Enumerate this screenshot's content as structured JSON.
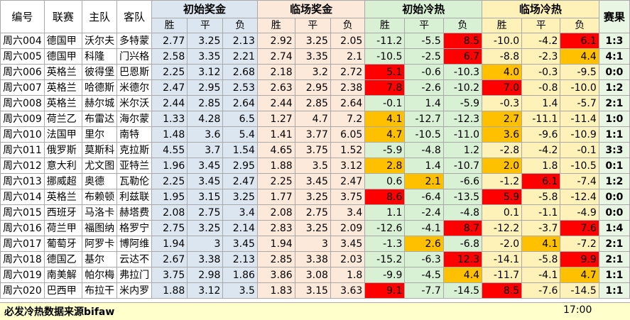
{
  "headers": {
    "id": "编号",
    "league": "联赛",
    "home": "主队",
    "away": "客队",
    "init_odds": "初始奖金",
    "live_odds": "临场奖金",
    "init_heat": "初始冷热",
    "live_heat": "临场冷热",
    "result": "赛果",
    "win": "胜",
    "draw": "平",
    "lose": "负"
  },
  "rows": [
    {
      "id": "周六004",
      "league": "德国甲",
      "home": "沃尔夫",
      "away": "多特蒙",
      "i": [
        "2.77",
        "3.25",
        "2.13"
      ],
      "l": [
        "2.92",
        "3.25",
        "2.05"
      ],
      "ih": [
        "-11.2",
        "-5.5",
        "8.5"
      ],
      "lh": [
        "-10.0",
        "-4.2",
        "6.1"
      ],
      "res": "1:3"
    },
    {
      "id": "周六005",
      "league": "德国甲",
      "home": "科隆",
      "away": "门兴格",
      "i": [
        "2.58",
        "3.35",
        "2.21"
      ],
      "l": [
        "2.74",
        "3.35",
        "2.1"
      ],
      "ih": [
        "-10.5",
        "-2.5",
        "6.7"
      ],
      "lh": [
        "-8.8",
        "-2.3",
        "4.4"
      ],
      "res": "4:1"
    },
    {
      "id": "周六006",
      "league": "英格兰",
      "home": "彼得堡",
      "away": "巴恩斯",
      "i": [
        "2.25",
        "3.12",
        "2.68"
      ],
      "l": [
        "2.18",
        "3.2",
        "2.72"
      ],
      "ih": [
        "5.1",
        "-0.6",
        "-10.3"
      ],
      "lh": [
        "4.0",
        "-0.3",
        "-9.5"
      ],
      "res": "0:0"
    },
    {
      "id": "周六007",
      "league": "英格兰",
      "home": "哈德斯",
      "away": "米德尔",
      "i": [
        "2.47",
        "2.95",
        "2.53"
      ],
      "l": [
        "2.63",
        "2.95",
        "2.38"
      ],
      "ih": [
        "7.8",
        "-2.6",
        "-10.2"
      ],
      "lh": [
        "7.0",
        "-0.8",
        "-10.0"
      ],
      "res": "1:2"
    },
    {
      "id": "周六008",
      "league": "英格兰",
      "home": "赫尔城",
      "away": "米尔沃",
      "i": [
        "2.44",
        "2.85",
        "2.64"
      ],
      "l": [
        "2.44",
        "2.85",
        "2.64"
      ],
      "ih": [
        "-0.1",
        "1.4",
        "-5.9"
      ],
      "lh": [
        "-0.3",
        "1.4",
        "-5.7"
      ],
      "res": "2:1"
    },
    {
      "id": "周六009",
      "league": "荷兰乙",
      "home": "布雷达",
      "away": "海尔蒙",
      "i": [
        "1.33",
        "4.28",
        "6.5"
      ],
      "l": [
        "1.27",
        "4.7",
        "7.2"
      ],
      "ih": [
        "4.1",
        "-12.7",
        "-12.3"
      ],
      "lh": [
        "2.7",
        "-11.1",
        "-11.4"
      ],
      "res": "1:0"
    },
    {
      "id": "周六010",
      "league": "法国甲",
      "home": "里尔",
      "away": "南特",
      "i": [
        "1.48",
        "3.6",
        "5.4"
      ],
      "l": [
        "1.41",
        "3.77",
        "6.05"
      ],
      "ih": [
        "4.7",
        "-10.5",
        "-11.0"
      ],
      "lh": [
        "3.6",
        "-9.6",
        "-10.9"
      ],
      "res": "1:1"
    },
    {
      "id": "周六011",
      "league": "俄罗斯",
      "home": "莫斯科",
      "away": "克拉斯",
      "i": [
        "4.55",
        "3.7",
        "1.54"
      ],
      "l": [
        "4.65",
        "3.75",
        "1.52"
      ],
      "ih": [
        "-5.9",
        "-4.8",
        "1.2"
      ],
      "lh": [
        "-2.8",
        "-4.2",
        "-0.1"
      ],
      "res": "3:3"
    },
    {
      "id": "周六012",
      "league": "意大利",
      "home": "尤文图",
      "away": "亚特兰",
      "i": [
        "1.96",
        "3.45",
        "2.95"
      ],
      "l": [
        "1.88",
        "3.5",
        "3.12"
      ],
      "ih": [
        "2.8",
        "1.4",
        "-10.7"
      ],
      "lh": [
        "2.0",
        "1.8",
        "-10.5"
      ],
      "res": "0:1"
    },
    {
      "id": "周六013",
      "league": "挪威超",
      "home": "奥德",
      "away": "瓦勒伦",
      "i": [
        "2.25",
        "3.45",
        "2.47"
      ],
      "l": [
        "2.25",
        "3.45",
        "2.47"
      ],
      "ih": [
        "0.6",
        "2.1",
        "-6.6"
      ],
      "lh": [
        "-1.2",
        "6.1",
        "-7.4"
      ],
      "res": "1:2"
    },
    {
      "id": "周六014",
      "league": "英格兰",
      "home": "布赖顿",
      "away": "利兹联",
      "i": [
        "1.95",
        "3.15",
        "3.25"
      ],
      "l": [
        "1.77",
        "3.25",
        "3.75"
      ],
      "ih": [
        "8.6",
        "-6.4",
        "-13.5"
      ],
      "lh": [
        "5.9",
        "-5.8",
        "-12.4"
      ],
      "res": "0:0"
    },
    {
      "id": "周六015",
      "league": "西班牙",
      "home": "马洛卡",
      "away": "赫塔费",
      "i": [
        "2.08",
        "2.75",
        "3.4"
      ],
      "l": [
        "2.08",
        "2.75",
        "3.4"
      ],
      "ih": [
        "1.1",
        "-2.4",
        "-4.8"
      ],
      "lh": [
        "0.1",
        "-1.1",
        "-4.9"
      ],
      "res": "0:0"
    },
    {
      "id": "周六016",
      "league": "荷兰甲",
      "home": "福图纳",
      "away": "格罗宁",
      "i": [
        "2.75",
        "3.25",
        "2.14"
      ],
      "l": [
        "2.83",
        "3.25",
        "2.09"
      ],
      "ih": [
        "-12.6",
        "-4.1",
        "8.7"
      ],
      "lh": [
        "-12.2",
        "-3.7",
        "7.6"
      ],
      "res": "1:4"
    },
    {
      "id": "周六017",
      "league": "葡萄牙",
      "home": "阿罗卡",
      "away": "博阿维",
      "i": [
        "1.94",
        "3",
        "3.45"
      ],
      "l": [
        "1.94",
        "3",
        "3.45"
      ],
      "ih": [
        "-1.3",
        "2.6",
        "-6.8"
      ],
      "lh": [
        "-2.0",
        "4.1",
        "-7.2"
      ],
      "res": "2:1"
    },
    {
      "id": "周六018",
      "league": "德国乙",
      "home": "基尔",
      "away": "云达不",
      "i": [
        "2.67",
        "3.38",
        "2.13"
      ],
      "l": [
        "2.85",
        "3.38",
        "2.03"
      ],
      "ih": [
        "-15.2",
        "-6.3",
        "12.3"
      ],
      "lh": [
        "-14.1",
        "-5.8",
        "9.9"
      ],
      "res": "2:1"
    },
    {
      "id": "周六019",
      "league": "南美解",
      "home": "帕尔梅",
      "away": "弗拉门",
      "i": [
        "3.75",
        "2.98",
        "1.86"
      ],
      "l": [
        "3.86",
        "3.08",
        "1.8"
      ],
      "ih": [
        "-9.9",
        "-4.5",
        "4.4"
      ],
      "lh": [
        "-11.7",
        "-4.1",
        "4.7"
      ],
      "res": "1:1"
    },
    {
      "id": "周六020",
      "league": "巴西甲",
      "home": "布拉干",
      "away": "米内罗",
      "i": [
        "1.88",
        "3.12",
        "3.5"
      ],
      "l": [
        "1.83",
        "3.15",
        "3.63"
      ],
      "ih": [
        "9.1",
        "-7.7",
        "-14.5"
      ],
      "lh": [
        "8.5",
        "-7.6",
        "-14.5"
      ],
      "res": "1:1"
    }
  ],
  "highlight_colors": {
    "hot": "#ff0000",
    "warm": "#ffc000"
  },
  "highlights": {
    "ih": [
      [
        2,
        "hot"
      ],
      [
        2,
        "hot"
      ],
      [
        0,
        "hot"
      ],
      [
        0,
        "hot"
      ],
      null,
      [
        0,
        "warm"
      ],
      [
        0,
        "warm"
      ],
      null,
      [
        0,
        "warm"
      ],
      [
        1,
        "warm"
      ],
      [
        0,
        "hot"
      ],
      null,
      [
        2,
        "hot"
      ],
      [
        1,
        "warm"
      ],
      [
        2,
        "hot"
      ],
      [
        2,
        "warm"
      ],
      [
        0,
        "hot"
      ]
    ],
    "lh": [
      [
        2,
        "hot"
      ],
      [
        2,
        "warm"
      ],
      [
        0,
        "warm"
      ],
      [
        0,
        "hot"
      ],
      null,
      [
        0,
        "warm"
      ],
      [
        0,
        "warm"
      ],
      null,
      [
        0,
        "warm"
      ],
      [
        1,
        "hot"
      ],
      [
        0,
        "hot"
      ],
      null,
      [
        2,
        "hot"
      ],
      [
        1,
        "warm"
      ],
      [
        2,
        "hot"
      ],
      [
        2,
        "warm"
      ],
      [
        0,
        "hot"
      ]
    ]
  },
  "footer": {
    "source": "必发冷热数据来源bifaw",
    "time": "17:00"
  }
}
